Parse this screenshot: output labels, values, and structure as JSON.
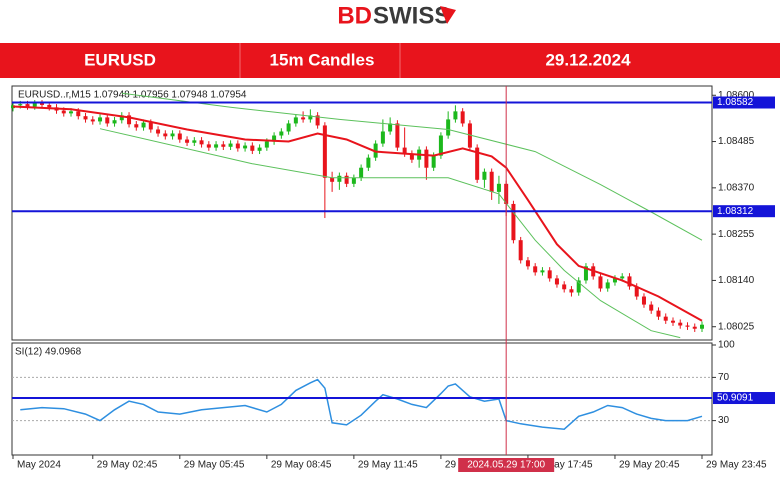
{
  "logo": {
    "part1": "BD",
    "part2": "SWISS"
  },
  "header": {
    "symbol": "EURUSD",
    "timeframe": "15m Candles",
    "date": "29.12.2024"
  },
  "chart_data": {
    "type": "candlestick",
    "info": "EURUSD..r,M15  1.07948 1.07956 1.07948 1.07954",
    "up_color": "#1cb81c",
    "down_color": "#e8141c",
    "ylim": [
      1.07992,
      1.08623
    ],
    "yticks": [
      {
        "value": 1.086,
        "label": "1.08600"
      },
      1.08485,
      {
        "value": 1.0837,
        "label": "1.08370"
      },
      1.08255,
      {
        "value": 1.0814,
        "label": "1.08140"
      },
      1.08025
    ],
    "xlim": [
      0,
      95
    ],
    "xticks": [
      {
        "value": 0,
        "label": "May 2024"
      },
      {
        "value": 11,
        "label": "29 May 02:45"
      },
      {
        "value": 23,
        "label": "29 May 05:45"
      },
      {
        "value": 35,
        "label": "29 May 08:45"
      },
      {
        "value": 47,
        "label": "29 May 11:45"
      },
      {
        "value": 59,
        "label": "29 May 14:45"
      },
      {
        "value": 71,
        "label": "29 May 17:45"
      },
      {
        "value": 83,
        "label": "29 May 20:45"
      },
      {
        "value": 95,
        "label": "29 May 23:45"
      }
    ],
    "ohlc": [
      [
        1.08568,
        1.08583,
        1.0856,
        1.08575
      ],
      [
        1.08575,
        1.08586,
        1.08567,
        1.08578
      ],
      [
        1.08578,
        1.08586,
        1.08564,
        1.08572
      ],
      [
        1.08572,
        1.08588,
        1.08564,
        1.0858
      ],
      [
        1.0858,
        1.08588,
        1.08568,
        1.08576
      ],
      [
        1.08576,
        1.08584,
        1.08562,
        1.0857
      ],
      [
        1.0857,
        1.08578,
        1.08554,
        1.08562
      ],
      [
        1.08562,
        1.0857,
        1.08547,
        1.08555
      ],
      [
        1.08555,
        1.08568,
        1.08547,
        1.0856
      ],
      [
        1.0856,
        1.08568,
        1.0854,
        1.08548
      ],
      [
        1.08548,
        1.08556,
        1.08532,
        1.0854
      ],
      [
        1.0854,
        1.08548,
        1.08527,
        1.08535
      ],
      [
        1.08535,
        1.08553,
        1.08527,
        1.08545
      ],
      [
        1.08545,
        1.08553,
        1.08522,
        1.0853
      ],
      [
        1.0853,
        1.08546,
        1.08522,
        1.08538
      ],
      [
        1.08538,
        1.08558,
        1.0853,
        1.0855
      ],
      [
        1.0855,
        1.08558,
        1.0852,
        1.08528
      ],
      [
        1.08528,
        1.08536,
        1.08512,
        1.0852
      ],
      [
        1.0852,
        1.0854,
        1.08512,
        1.08532
      ],
      [
        1.08532,
        1.0854,
        1.08507,
        1.08515
      ],
      [
        1.08515,
        1.08523,
        1.08497,
        1.08505
      ],
      [
        1.08505,
        1.08513,
        1.0849,
        1.08498
      ],
      [
        1.08498,
        1.08513,
        1.0849,
        1.08505
      ],
      [
        1.08505,
        1.08513,
        1.08482,
        1.0849
      ],
      [
        1.0849,
        1.08498,
        1.08474,
        1.08482
      ],
      [
        1.08482,
        1.08496,
        1.08474,
        1.08488
      ],
      [
        1.08488,
        1.08496,
        1.0847,
        1.08478
      ],
      [
        1.08478,
        1.08486,
        1.08462,
        1.0847
      ],
      [
        1.0847,
        1.08486,
        1.08462,
        1.08478
      ],
      [
        1.08478,
        1.08486,
        1.08464,
        1.08472
      ],
      [
        1.08472,
        1.08488,
        1.08464,
        1.0848
      ],
      [
        1.0848,
        1.08488,
        1.0846,
        1.08468
      ],
      [
        1.08468,
        1.08483,
        1.0846,
        1.08475
      ],
      [
        1.08475,
        1.08483,
        1.08454,
        1.08462
      ],
      [
        1.08462,
        1.08478,
        1.08454,
        1.0847
      ],
      [
        1.0847,
        1.08493,
        1.08462,
        1.08485
      ],
      [
        1.08485,
        1.08508,
        1.08477,
        1.085
      ],
      [
        1.085,
        1.08518,
        1.08492,
        1.0851
      ],
      [
        1.0851,
        1.08538,
        1.08502,
        1.0853
      ],
      [
        1.0853,
        1.08553,
        1.08522,
        1.08545
      ],
      [
        1.08545,
        1.0856,
        1.08532,
        1.0854
      ],
      [
        1.0854,
        1.08565,
        1.08532,
        1.0855
      ],
      [
        1.0855,
        1.08558,
        1.08517,
        1.08525
      ],
      [
        1.08525,
        1.08533,
        1.08295,
        1.08395
      ],
      [
        1.08395,
        1.0841,
        1.0836,
        1.08385
      ],
      [
        1.08385,
        1.08408,
        1.08365,
        1.084
      ],
      [
        1.084,
        1.08408,
        1.08372,
        1.0838
      ],
      [
        1.0838,
        1.08403,
        1.08372,
        1.08395
      ],
      [
        1.08395,
        1.08428,
        1.08387,
        1.0842
      ],
      [
        1.0842,
        1.08453,
        1.08412,
        1.08445
      ],
      [
        1.08445,
        1.08488,
        1.08437,
        1.0848
      ],
      [
        1.0848,
        1.0854,
        1.08472,
        1.0851
      ],
      [
        1.0851,
        1.08545,
        1.08502,
        1.0853
      ],
      [
        1.0853,
        1.08538,
        1.08462,
        1.0847
      ],
      [
        1.0847,
        1.0852,
        1.08447,
        1.08455
      ],
      [
        1.08455,
        1.08463,
        1.08432,
        1.0844
      ],
      [
        1.0844,
        1.08473,
        1.0842,
        1.08465
      ],
      [
        1.08465,
        1.08473,
        1.0839,
        1.0842
      ],
      [
        1.0842,
        1.08458,
        1.08412,
        1.0845
      ],
      [
        1.0845,
        1.08508,
        1.08442,
        1.085
      ],
      [
        1.085,
        1.0856,
        1.08492,
        1.0854
      ],
      [
        1.0854,
        1.08575,
        1.08532,
        1.0856
      ],
      [
        1.0856,
        1.08568,
        1.08522,
        1.0853
      ],
      [
        1.0853,
        1.08538,
        1.08462,
        1.0847
      ],
      [
        1.0847,
        1.08478,
        1.08382,
        1.0839
      ],
      [
        1.0839,
        1.08418,
        1.0837,
        1.0841
      ],
      [
        1.0841,
        1.08418,
        1.0834,
        1.0836
      ],
      [
        1.0836,
        1.084,
        1.0833,
        1.0838
      ],
      [
        1.0838,
        1.08388,
        1.083,
        1.0833
      ],
      [
        1.0833,
        1.08338,
        1.08232,
        1.0824
      ],
      [
        1.0824,
        1.08248,
        1.08182,
        1.0819
      ],
      [
        1.0819,
        1.08198,
        1.08167,
        1.08175
      ],
      [
        1.08175,
        1.08183,
        1.08152,
        1.0816
      ],
      [
        1.0816,
        1.08173,
        1.08152,
        1.08165
      ],
      [
        1.08165,
        1.08173,
        1.08137,
        1.08145
      ],
      [
        1.08145,
        1.08153,
        1.08122,
        1.0813
      ],
      [
        1.0813,
        1.08138,
        1.0811,
        1.08118
      ],
      [
        1.08118,
        1.08126,
        1.081,
        1.0811
      ],
      [
        1.0811,
        1.08148,
        1.08102,
        1.0814
      ],
      [
        1.0814,
        1.08183,
        1.08132,
        1.08175
      ],
      [
        1.08175,
        1.08183,
        1.08142,
        1.0815
      ],
      [
        1.0815,
        1.08158,
        1.08112,
        1.0812
      ],
      [
        1.0812,
        1.08143,
        1.08112,
        1.08135
      ],
      [
        1.08135,
        1.08153,
        1.08127,
        1.08145
      ],
      [
        1.08145,
        1.08158,
        1.08137,
        1.0815
      ],
      [
        1.0815,
        1.08158,
        1.08117,
        1.08125
      ],
      [
        1.08125,
        1.08133,
        1.08092,
        1.081
      ],
      [
        1.081,
        1.08108,
        1.08072,
        1.0808
      ],
      [
        1.0808,
        1.08088,
        1.08057,
        1.08065
      ],
      [
        1.08065,
        1.08073,
        1.08042,
        1.0805
      ],
      [
        1.0805,
        1.08058,
        1.08032,
        1.0804
      ],
      [
        1.0804,
        1.08048,
        1.08027,
        1.08035
      ],
      [
        1.08035,
        1.08043,
        1.0802,
        1.08028
      ],
      [
        1.08028,
        1.08036,
        1.08017,
        1.08025
      ],
      [
        1.08025,
        1.08033,
        1.08012,
        1.0802
      ],
      [
        1.0802,
        1.08038,
        1.08012,
        1.0803
      ]
    ],
    "lines": [
      {
        "color": "#e8141c",
        "width": 2,
        "x": [
          0,
          8,
          16,
          24,
          32,
          38,
          42,
          46,
          50,
          54,
          58,
          62,
          66,
          68,
          71,
          75,
          78,
          84,
          89,
          95
        ],
        "values": [
          1.08572,
          1.08565,
          1.08545,
          1.08515,
          1.0849,
          1.08485,
          1.08505,
          1.0849,
          1.0846,
          1.08455,
          1.0845,
          1.08468,
          1.08448,
          1.0842,
          1.0834,
          1.0823,
          1.08176,
          1.0814,
          1.081,
          1.0804
        ]
      },
      {
        "color": "#5cc15c",
        "width": 1,
        "x": [
          15,
          30,
          45,
          60,
          72,
          81,
          88,
          95
        ],
        "values": [
          1.08605,
          1.0857,
          1.0854,
          1.08515,
          1.0846,
          1.08378,
          1.0831,
          1.0824
        ]
      },
      {
        "color": "#5cc15c",
        "width": 1,
        "x": [
          12,
          33,
          44,
          60,
          67,
          72,
          76,
          81,
          88,
          92
        ],
        "values": [
          1.08517,
          1.0843,
          1.08395,
          1.08395,
          1.08355,
          1.0824,
          1.08165,
          1.0809,
          1.08015,
          1.07998
        ]
      }
    ],
    "hlines": [
      1.08582,
      1.08312
    ],
    "hline_color": "#1414d8",
    "vline": {
      "x": 68,
      "label": "2024.05.29 17:00",
      "color": "#d0304a"
    },
    "rsi": {
      "title": "SI(12) 49.0968",
      "color": "#2e8fe0",
      "ylim": [
        0,
        100
      ],
      "yticks": [
        100,
        70,
        30
      ],
      "levels": [
        70,
        30
      ],
      "hline": 50.9091,
      "x": [
        1,
        4,
        7,
        10,
        12,
        14,
        16,
        18,
        20,
        23,
        26,
        29,
        32,
        35,
        37,
        39,
        41,
        42,
        43,
        44,
        46,
        48,
        50,
        51,
        53,
        55,
        57,
        59,
        60,
        61,
        63,
        65,
        67,
        68,
        70,
        73,
        76,
        78,
        80,
        82,
        84,
        86,
        88,
        90,
        93,
        95
      ],
      "values": [
        40,
        42,
        41,
        36,
        30,
        40,
        48,
        45,
        38,
        36,
        40,
        42,
        44,
        38,
        45,
        58,
        65,
        68,
        60,
        28,
        26,
        35,
        48,
        54,
        50,
        45,
        42,
        55,
        62,
        64,
        52,
        48,
        50,
        30,
        27,
        24,
        22,
        34,
        38,
        44,
        42,
        36,
        32,
        30,
        30,
        34
      ]
    }
  }
}
